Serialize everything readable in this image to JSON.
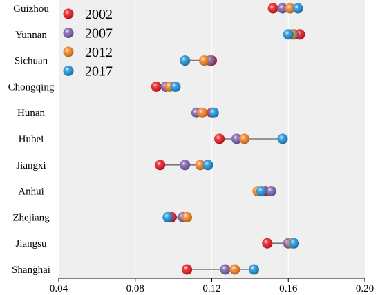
{
  "chart_data": {
    "type": "dot-range",
    "orientation": "horizontal",
    "categories": [
      "Guizhou",
      "Yunnan",
      "Sichuan",
      "Chongqing",
      "Hunan",
      "Hubei",
      "Jiangxi",
      "Anhui",
      "Zhejiang",
      "Jiangsu",
      "Shanghai"
    ],
    "series": [
      {
        "name": "2002",
        "color": "#e8141c",
        "values": [
          0.152,
          0.166,
          0.12,
          0.091,
          0.12,
          0.124,
          0.093,
          0.148,
          0.099,
          0.149,
          0.107
        ]
      },
      {
        "name": "2007",
        "color": "#7b5cb0",
        "values": [
          0.157,
          0.163,
          0.119,
          0.096,
          0.112,
          0.133,
          0.106,
          0.151,
          0.105,
          0.16,
          0.127
        ]
      },
      {
        "name": "2012",
        "color": "#f07f1c",
        "values": [
          0.161,
          0.162,
          0.116,
          0.098,
          0.115,
          0.137,
          0.114,
          0.144,
          0.107,
          0.162,
          0.132
        ]
      },
      {
        "name": "2017",
        "color": "#1a8fd8",
        "values": [
          0.165,
          0.16,
          0.106,
          0.101,
          0.121,
          0.157,
          0.118,
          0.146,
          0.097,
          0.163,
          0.142
        ]
      }
    ],
    "xlim": [
      0.04,
      0.2
    ],
    "xticks": [
      "0.04",
      "0.08",
      "0.12",
      "0.16",
      "0.20"
    ],
    "xtick_values": [
      0.04,
      0.08,
      0.12,
      0.16,
      0.2
    ],
    "grid": "vertical",
    "legend_position": "top-left",
    "background": "#efefef",
    "connector_color": "#7a7a7a"
  }
}
